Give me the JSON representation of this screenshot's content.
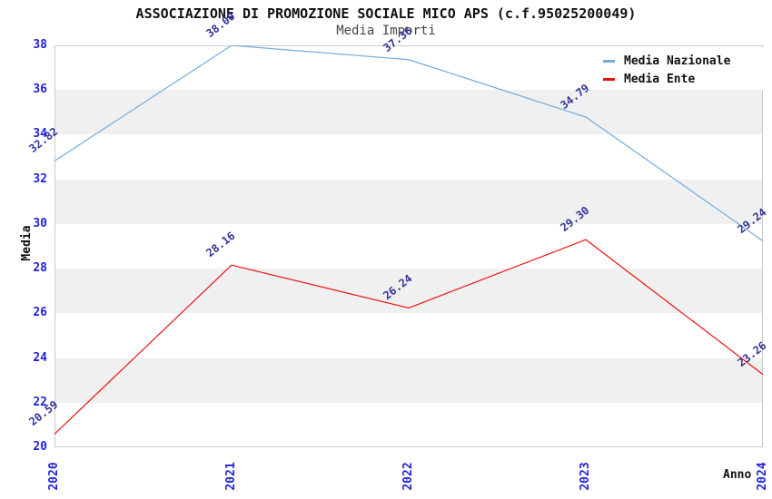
{
  "header": {
    "title": "ASSOCIAZIONE DI PROMOZIONE SOCIALE MICO APS (c.f.95025200049)",
    "subtitle": "Media Importi"
  },
  "colors": {
    "tick_label": "#2222dd",
    "point_label": "#333399",
    "band": "#f0f0f0",
    "plot_border": "#c9c9c9"
  },
  "chart_data": {
    "type": "line",
    "title": "ASSOCIAZIONE DI PROMOZIONE SOCIALE MICO APS (c.f.95025200049)",
    "subtitle": "Media Importi",
    "xlabel": "Anno",
    "ylabel": "Media",
    "categories": [
      "2020",
      "2021",
      "2022",
      "2023",
      "2024"
    ],
    "series": [
      {
        "name": "Media Nazionale",
        "color": "#74acde",
        "values": [
          32.82,
          38.0,
          37.36,
          34.79,
          29.24
        ]
      },
      {
        "name": "Media Ente",
        "color": "#ee1111",
        "values": [
          20.59,
          28.16,
          26.24,
          29.3,
          23.26
        ]
      }
    ],
    "ylim": [
      20,
      38
    ],
    "ytick_step": 2,
    "grid": "alternating-horizontal-bands",
    "legend_position": "top-right",
    "point_labels_decimals": 2
  }
}
